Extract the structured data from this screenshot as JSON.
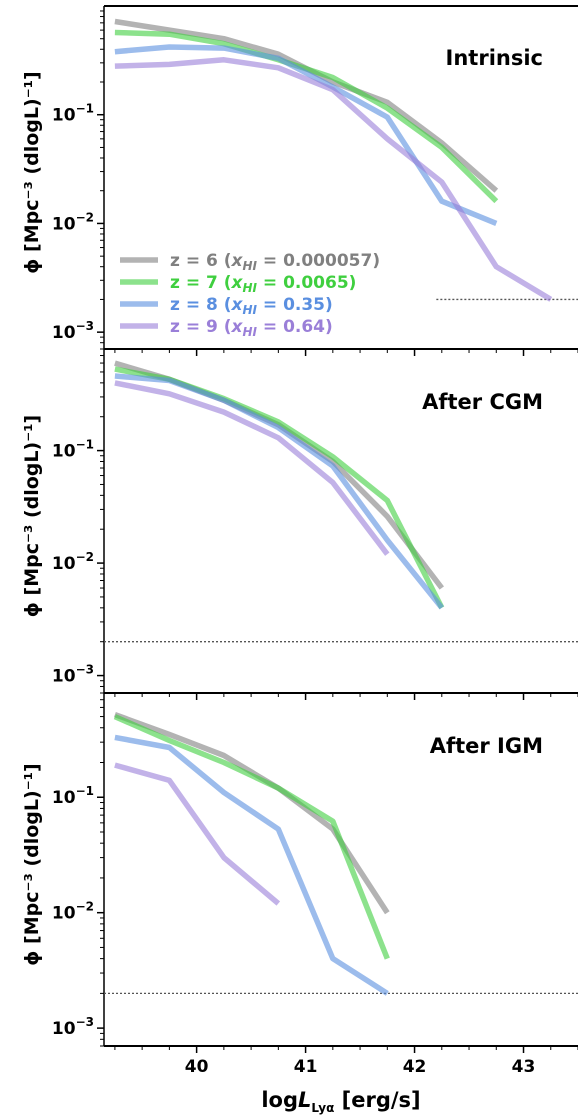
{
  "figure": {
    "xlabel_prefix": "log",
    "xlabel_var": "L",
    "xlabel_sub": "Lyα",
    "xlabel_unit": "[erg/s]",
    "ylabel_text": "ϕ [Mpc⁻³ (dlogL)⁻¹]"
  },
  "legend": {
    "entries": [
      {
        "prefix": "z = 6 (",
        "var": "x",
        "sub": "HI",
        "suffix": " = 0.000057)",
        "color": "#808080"
      },
      {
        "prefix": "z = 7 (",
        "var": "x",
        "sub": "HI",
        "suffix": " = 0.0065)",
        "color": "#3fcf3f"
      },
      {
        "prefix": "z = 8 (",
        "var": "x",
        "sub": "HI",
        "suffix": " = 0.35)",
        "color": "#5a8fe0"
      },
      {
        "prefix": "z = 9 (",
        "var": "x",
        "sub": "HI",
        "suffix": " = 0.64)",
        "color": "#9a7fd8"
      }
    ]
  },
  "chart_data": [
    {
      "type": "line",
      "title": "Intrinsic",
      "xlabel": "logL_Lyα [erg/s]",
      "ylabel": "ϕ [Mpc^-3 (dlogL)^-1]",
      "yscale": "log",
      "xlim": [
        39.15,
        43.5
      ],
      "ylim": [
        0.0007,
        1.0
      ],
      "xticks": [
        40,
        41,
        42,
        43
      ],
      "yticks": [
        0.001,
        0.01,
        0.1
      ],
      "reference_line": {
        "y": 0.002,
        "x": [
          42.2,
          43.5
        ],
        "style": "dotted"
      },
      "series": [
        {
          "name": "z = 6 (x_HI = 0.000057)",
          "color": "#808080",
          "x": [
            39.25,
            39.75,
            40.25,
            40.75,
            41.25,
            41.75,
            42.25,
            42.75
          ],
          "y": [
            0.72,
            0.6,
            0.5,
            0.36,
            0.2,
            0.13,
            0.055,
            0.02
          ]
        },
        {
          "name": "z = 7 (x_HI = 0.0065)",
          "color": "#3fcf3f",
          "x": [
            39.25,
            39.75,
            40.25,
            40.75,
            41.25,
            41.75,
            42.25,
            42.75
          ],
          "y": [
            0.57,
            0.55,
            0.45,
            0.32,
            0.22,
            0.115,
            0.05,
            0.016
          ]
        },
        {
          "name": "z = 8 (x_HI = 0.35)",
          "color": "#5a8fe0",
          "x": [
            39.25,
            39.75,
            40.25,
            40.75,
            41.25,
            41.75,
            42.25,
            42.75
          ],
          "y": [
            0.38,
            0.42,
            0.41,
            0.33,
            0.18,
            0.095,
            0.016,
            0.01
          ]
        },
        {
          "name": "z = 9 (x_HI = 0.64)",
          "color": "#9a7fd8",
          "x": [
            39.25,
            39.75,
            40.25,
            40.75,
            41.25,
            41.75,
            42.25,
            42.75,
            43.25
          ],
          "y": [
            0.28,
            0.29,
            0.32,
            0.27,
            0.17,
            0.06,
            0.024,
            0.004,
            0.002
          ]
        }
      ]
    },
    {
      "type": "line",
      "title": "After CGM",
      "xlabel": "logL_Lyα [erg/s]",
      "ylabel": "ϕ [Mpc^-3 (dlogL)^-1]",
      "yscale": "log",
      "xlim": [
        39.15,
        43.5
      ],
      "ylim": [
        0.0007,
        0.8
      ],
      "xticks": [
        40,
        41,
        42,
        43
      ],
      "yticks": [
        0.001,
        0.01,
        0.1
      ],
      "reference_line": {
        "y": 0.002,
        "x": [
          39.15,
          43.5
        ],
        "style": "dotted"
      },
      "series": [
        {
          "name": "z = 6 (x_HI = 0.000057)",
          "color": "#808080",
          "x": [
            39.25,
            39.75,
            40.25,
            40.75,
            41.25,
            41.75,
            42.25
          ],
          "y": [
            0.6,
            0.43,
            0.28,
            0.17,
            0.08,
            0.026,
            0.006
          ]
        },
        {
          "name": "z = 7 (x_HI = 0.0065)",
          "color": "#3fcf3f",
          "x": [
            39.25,
            39.75,
            40.25,
            40.75,
            41.25,
            41.75,
            42.25
          ],
          "y": [
            0.53,
            0.43,
            0.29,
            0.18,
            0.088,
            0.036,
            0.004
          ]
        },
        {
          "name": "z = 8 (x_HI = 0.35)",
          "color": "#5a8fe0",
          "x": [
            39.25,
            39.75,
            40.25,
            40.75,
            41.25,
            41.75,
            42.25
          ],
          "y": [
            0.46,
            0.42,
            0.28,
            0.16,
            0.073,
            0.016,
            0.004
          ]
        },
        {
          "name": "z = 9 (x_HI = 0.64)",
          "color": "#9a7fd8",
          "x": [
            39.25,
            39.75,
            40.25,
            40.75,
            41.25,
            41.75
          ],
          "y": [
            0.4,
            0.32,
            0.22,
            0.13,
            0.052,
            0.012
          ]
        }
      ]
    },
    {
      "type": "line",
      "title": "After IGM",
      "xlabel": "logL_Lyα [erg/s]",
      "ylabel": "ϕ [Mpc^-3 (dlogL)^-1]",
      "yscale": "log",
      "xlim": [
        39.15,
        43.5
      ],
      "ylim": [
        0.0007,
        0.8
      ],
      "xticks": [
        40,
        41,
        42,
        43
      ],
      "yticks": [
        0.001,
        0.01,
        0.1
      ],
      "reference_line": {
        "y": 0.002,
        "x": [
          39.15,
          43.5
        ],
        "style": "dotted"
      },
      "series": [
        {
          "name": "z = 6 (x_HI = 0.000057)",
          "color": "#808080",
          "x": [
            39.25,
            39.75,
            40.25,
            40.75,
            41.25,
            41.75
          ],
          "y": [
            0.52,
            0.35,
            0.23,
            0.12,
            0.053,
            0.01
          ]
        },
        {
          "name": "z = 7 (x_HI = 0.0065)",
          "color": "#3fcf3f",
          "x": [
            39.25,
            39.75,
            40.25,
            40.75,
            41.25,
            41.75
          ],
          "y": [
            0.5,
            0.31,
            0.2,
            0.12,
            0.062,
            0.004
          ]
        },
        {
          "name": "z = 8 (x_HI = 0.35)",
          "color": "#5a8fe0",
          "x": [
            39.25,
            39.75,
            40.25,
            40.75,
            41.25,
            41.75
          ],
          "y": [
            0.33,
            0.27,
            0.11,
            0.053,
            0.004,
            0.002
          ]
        },
        {
          "name": "z = 9 (x_HI = 0.64)",
          "color": "#9a7fd8",
          "x": [
            39.25,
            39.75,
            40.25,
            40.75
          ],
          "y": [
            0.19,
            0.14,
            0.03,
            0.012
          ]
        }
      ]
    }
  ]
}
